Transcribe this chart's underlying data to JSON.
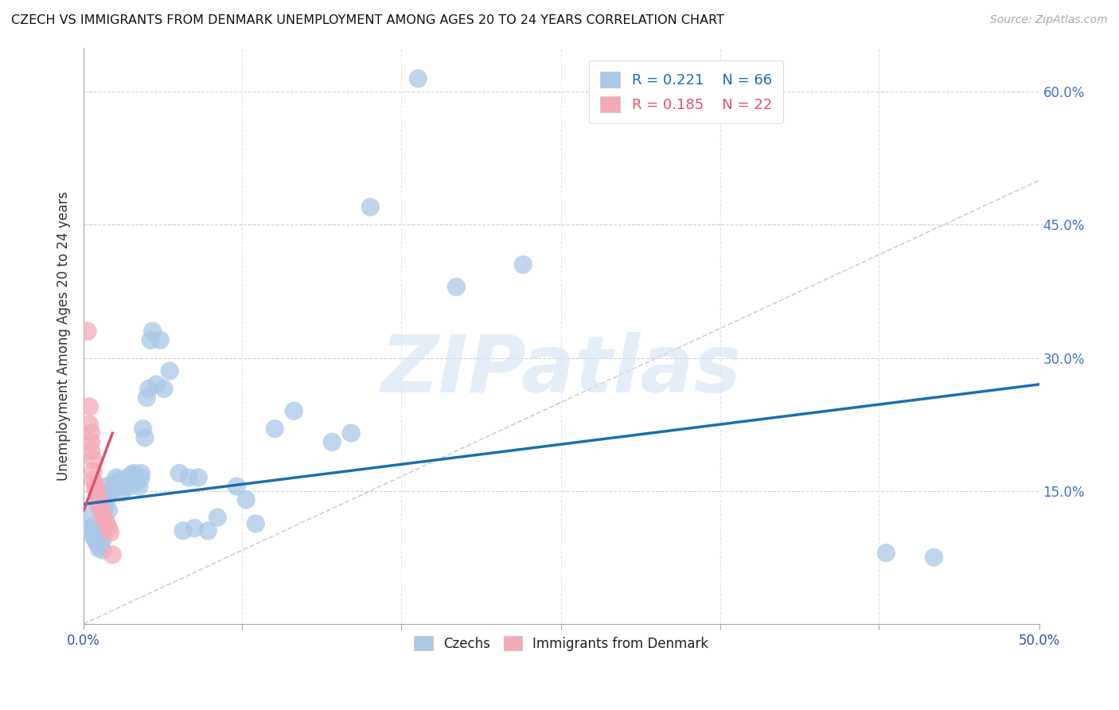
{
  "title": "CZECH VS IMMIGRANTS FROM DENMARK UNEMPLOYMENT AMONG AGES 20 TO 24 YEARS CORRELATION CHART",
  "source": "Source: ZipAtlas.com",
  "ylabel": "Unemployment Among Ages 20 to 24 years",
  "xlim": [
    0.0,
    0.5
  ],
  "ylim": [
    0.0,
    0.65
  ],
  "xticks": [
    0.0,
    0.083,
    0.166,
    0.25,
    0.333,
    0.416,
    0.5
  ],
  "yticks": [
    0.0,
    0.15,
    0.3,
    0.45,
    0.6
  ],
  "legend_czech": "Czechs",
  "legend_denmark": "Immigrants from Denmark",
  "R_czech": 0.221,
  "N_czech": 66,
  "R_denmark": 0.185,
  "N_denmark": 22,
  "czech_color": "#aac8e8",
  "czech_line_color": "#1a6faf",
  "denmark_color": "#f5aab8",
  "denmark_line_color": "#e0506a",
  "diag_color": "#c8c8c8",
  "background_color": "#ffffff",
  "watermark": "ZIPatlas",
  "right_ytick_labels": [
    "60.0%",
    "45.0%",
    "30.0%",
    "15.0%"
  ],
  "right_ytick_vals": [
    0.6,
    0.45,
    0.3,
    0.15
  ],
  "czech_points": [
    [
      0.002,
      0.125
    ],
    [
      0.003,
      0.108
    ],
    [
      0.004,
      0.105
    ],
    [
      0.005,
      0.11
    ],
    [
      0.005,
      0.098
    ],
    [
      0.006,
      0.095
    ],
    [
      0.006,
      0.102
    ],
    [
      0.007,
      0.09
    ],
    [
      0.008,
      0.085
    ],
    [
      0.008,
      0.092
    ],
    [
      0.009,
      0.088
    ],
    [
      0.01,
      0.083
    ],
    [
      0.01,
      0.095
    ],
    [
      0.011,
      0.13
    ],
    [
      0.011,
      0.145
    ],
    [
      0.012,
      0.14
    ],
    [
      0.012,
      0.155
    ],
    [
      0.013,
      0.128
    ],
    [
      0.014,
      0.15
    ],
    [
      0.015,
      0.148
    ],
    [
      0.016,
      0.16
    ],
    [
      0.017,
      0.165
    ],
    [
      0.018,
      0.16
    ],
    [
      0.019,
      0.162
    ],
    [
      0.02,
      0.155
    ],
    [
      0.02,
      0.148
    ],
    [
      0.021,
      0.155
    ],
    [
      0.022,
      0.16
    ],
    [
      0.023,
      0.165
    ],
    [
      0.024,
      0.155
    ],
    [
      0.025,
      0.168
    ],
    [
      0.026,
      0.17
    ],
    [
      0.028,
      0.16
    ],
    [
      0.029,
      0.155
    ],
    [
      0.03,
      0.17
    ],
    [
      0.03,
      0.165
    ],
    [
      0.031,
      0.22
    ],
    [
      0.032,
      0.21
    ],
    [
      0.033,
      0.255
    ],
    [
      0.034,
      0.265
    ],
    [
      0.035,
      0.32
    ],
    [
      0.036,
      0.33
    ],
    [
      0.038,
      0.27
    ],
    [
      0.04,
      0.32
    ],
    [
      0.042,
      0.265
    ],
    [
      0.045,
      0.285
    ],
    [
      0.05,
      0.17
    ],
    [
      0.052,
      0.105
    ],
    [
      0.055,
      0.165
    ],
    [
      0.058,
      0.108
    ],
    [
      0.06,
      0.165
    ],
    [
      0.065,
      0.105
    ],
    [
      0.07,
      0.12
    ],
    [
      0.08,
      0.155
    ],
    [
      0.085,
      0.14
    ],
    [
      0.09,
      0.113
    ],
    [
      0.1,
      0.22
    ],
    [
      0.11,
      0.24
    ],
    [
      0.13,
      0.205
    ],
    [
      0.14,
      0.215
    ],
    [
      0.15,
      0.47
    ],
    [
      0.175,
      0.615
    ],
    [
      0.195,
      0.38
    ],
    [
      0.23,
      0.405
    ],
    [
      0.42,
      0.08
    ],
    [
      0.445,
      0.075
    ]
  ],
  "denmark_points": [
    [
      0.002,
      0.33
    ],
    [
      0.003,
      0.245
    ],
    [
      0.003,
      0.225
    ],
    [
      0.004,
      0.215
    ],
    [
      0.004,
      0.205
    ],
    [
      0.004,
      0.195
    ],
    [
      0.005,
      0.185
    ],
    [
      0.005,
      0.172
    ],
    [
      0.005,
      0.162
    ],
    [
      0.006,
      0.157
    ],
    [
      0.006,
      0.152
    ],
    [
      0.007,
      0.148
    ],
    [
      0.007,
      0.143
    ],
    [
      0.008,
      0.138
    ],
    [
      0.008,
      0.133
    ],
    [
      0.009,
      0.128
    ],
    [
      0.01,
      0.122
    ],
    [
      0.011,
      0.118
    ],
    [
      0.012,
      0.113
    ],
    [
      0.013,
      0.108
    ],
    [
      0.014,
      0.103
    ],
    [
      0.015,
      0.078
    ]
  ],
  "czech_trend_x": [
    0.0,
    0.5
  ],
  "czech_trend_y": [
    0.135,
    0.27
  ],
  "denmark_trend_x": [
    0.0,
    0.015
  ],
  "denmark_trend_y": [
    0.128,
    0.215
  ]
}
